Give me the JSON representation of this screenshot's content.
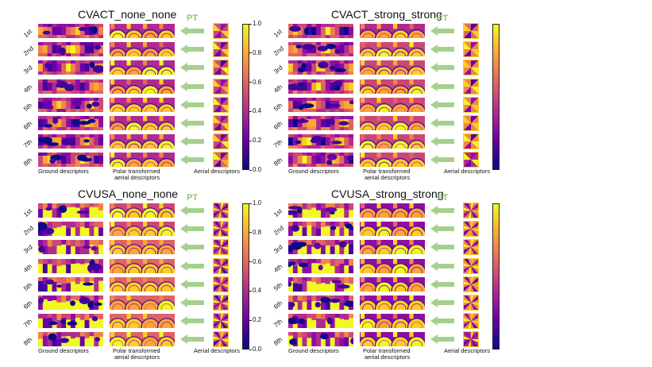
{
  "figure": {
    "pt_label": "PT",
    "row_labels": [
      "1st",
      "2nd",
      "3rd",
      "4th",
      "5th",
      "6th",
      "7th",
      "8th"
    ],
    "captions": {
      "ground": "Ground descriptors",
      "polar_line1": "Polar transformed",
      "polar_line2": "aerial descriptors",
      "aerial": "Aerial descriptors"
    },
    "colorbar_ticks": [
      "0.0",
      "0.2",
      "0.4",
      "0.6",
      "0.8",
      "1.0"
    ],
    "colormap": "plasma",
    "panels": [
      {
        "id": "cvact-none",
        "title": "CVACT_none_none",
        "style": "act",
        "show_colorbar_ticks": true
      },
      {
        "id": "cvact-strong",
        "title": "CVACT_strong_strong",
        "style": "act",
        "show_colorbar_ticks": false
      },
      {
        "id": "cvusa-none",
        "title": "CVUSA_none_none",
        "style": "usa",
        "show_colorbar_ticks": true
      },
      {
        "id": "cvusa-strong",
        "title": "CVUSA_strong_strong",
        "style": "usa",
        "show_colorbar_ticks": false
      }
    ]
  },
  "colors": {
    "arrow": "#a6d08e",
    "pt_text": "#8cc870"
  }
}
